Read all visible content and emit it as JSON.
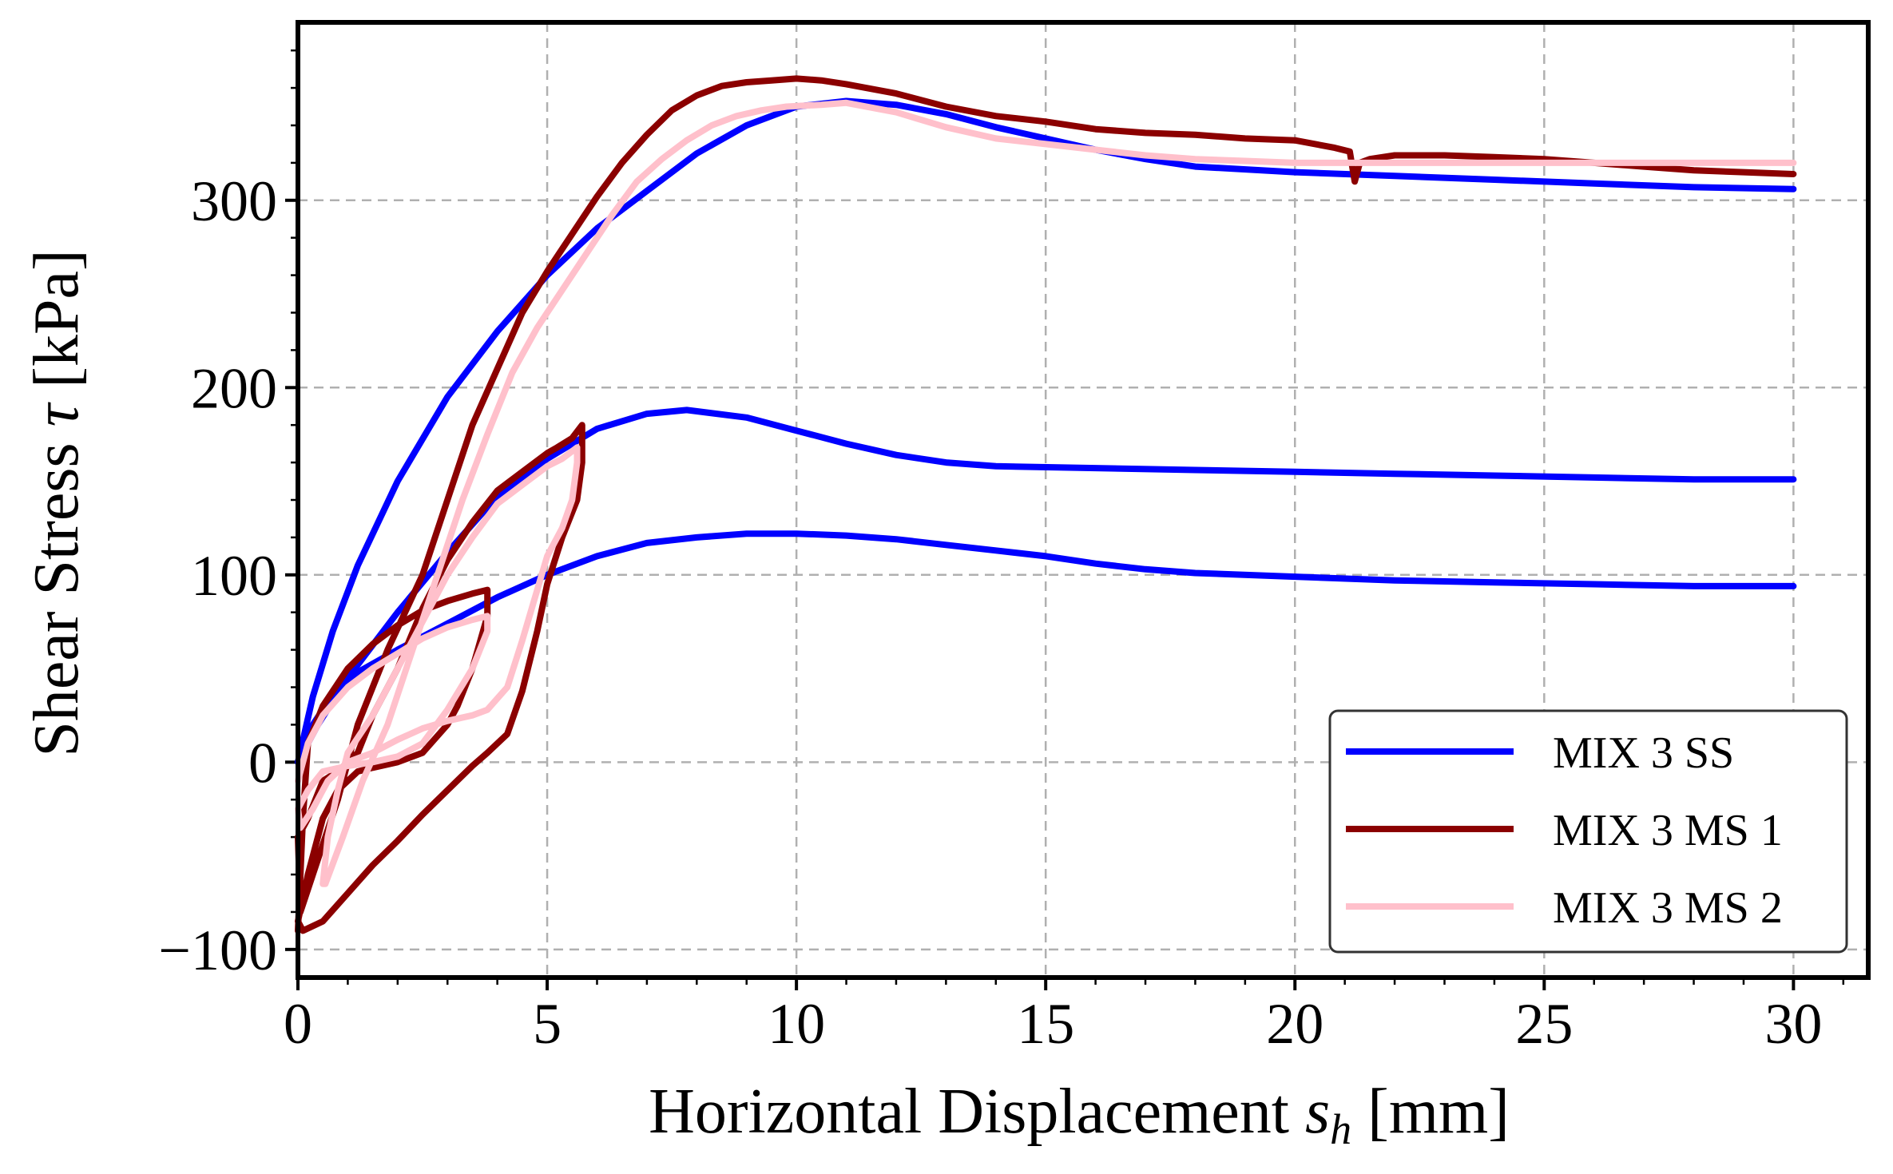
{
  "chart_data": {
    "type": "line",
    "xlabel": "Horizontal Displacement s_h [mm]",
    "xlabel_main": "Horizontal Displacement ",
    "xlabel_sym": "s",
    "xlabel_sub": "h",
    "xlabel_unit": " [mm]",
    "ylabel": "Shear Stress τ [kPa]",
    "ylabel_main": "Shear Stress ",
    "ylabel_sym": "τ",
    "ylabel_unit": " [kPa]",
    "xlim": [
      0,
      31.5
    ],
    "ylim": [
      -115,
      395
    ],
    "xticks": [
      0,
      5,
      10,
      15,
      20,
      25,
      30
    ],
    "yticks": [
      -100,
      0,
      100,
      200,
      300
    ],
    "xtick_labels": [
      "0",
      "5",
      "10",
      "15",
      "20",
      "25",
      "30"
    ],
    "ytick_labels": [
      "−100",
      "0",
      "100",
      "200",
      "300"
    ],
    "grid": true,
    "legend_position": "bottom-right",
    "series": [
      {
        "name": "MIX 3 SS",
        "color": "#0000ff",
        "segments": [
          [
            [
              0.0,
              0
            ],
            [
              0.3,
              20
            ],
            [
              0.7,
              36
            ],
            [
              1.2,
              48
            ],
            [
              2,
              60
            ],
            [
              3,
              74
            ],
            [
              4,
              88
            ],
            [
              5,
              100
            ],
            [
              6,
              110
            ],
            [
              7,
              117
            ],
            [
              8,
              120
            ],
            [
              9,
              122
            ],
            [
              10,
              122
            ],
            [
              11,
              121
            ],
            [
              12,
              119
            ],
            [
              13,
              116
            ],
            [
              14,
              113
            ],
            [
              15,
              110
            ],
            [
              16,
              106
            ],
            [
              17,
              103
            ],
            [
              18,
              101
            ],
            [
              20,
              99
            ],
            [
              22,
              97
            ],
            [
              24,
              96
            ],
            [
              26,
              95
            ],
            [
              28,
              94
            ],
            [
              30,
              94
            ]
          ],
          [
            [
              0.0,
              0
            ],
            [
              0.4,
              20
            ],
            [
              1.0,
              45
            ],
            [
              2,
              80
            ],
            [
              3,
              112
            ],
            [
              4,
              142
            ],
            [
              5,
              162
            ],
            [
              6,
              178
            ],
            [
              7,
              186
            ],
            [
              7.8,
              188
            ],
            [
              9,
              184
            ],
            [
              10,
              177
            ],
            [
              11,
              170
            ],
            [
              12,
              164
            ],
            [
              13,
              160
            ],
            [
              14,
              158
            ],
            [
              16,
              157
            ],
            [
              18,
              156
            ],
            [
              20,
              155
            ],
            [
              22,
              154
            ],
            [
              24,
              153
            ],
            [
              26,
              152
            ],
            [
              28,
              151
            ],
            [
              30,
              151
            ]
          ],
          [
            [
              0.0,
              0
            ],
            [
              0.3,
              35
            ],
            [
              0.7,
              70
            ],
            [
              1.2,
              105
            ],
            [
              2,
              150
            ],
            [
              3,
              195
            ],
            [
              4,
              230
            ],
            [
              5,
              260
            ],
            [
              6,
              285
            ],
            [
              7,
              305
            ],
            [
              8,
              325
            ],
            [
              9,
              340
            ],
            [
              10,
              350
            ],
            [
              11,
              353
            ],
            [
              12,
              351
            ],
            [
              13,
              346
            ],
            [
              14,
              339
            ],
            [
              15,
              333
            ],
            [
              16,
              327
            ],
            [
              17,
              322
            ],
            [
              18,
              318
            ],
            [
              20,
              315
            ],
            [
              22,
              313
            ],
            [
              24,
              311
            ],
            [
              26,
              309
            ],
            [
              28,
              307
            ],
            [
              30,
              306
            ]
          ]
        ]
      },
      {
        "name": "MIX 3 MS 1",
        "color": "#8b0000",
        "segments": [
          [
            [
              0.0,
              -90
            ],
            [
              0.1,
              -30
            ],
            [
              0.2,
              10
            ],
            [
              0.5,
              30
            ],
            [
              1,
              50
            ],
            [
              1.5,
              63
            ],
            [
              2,
              73
            ],
            [
              2.5,
              81
            ],
            [
              3,
              86
            ],
            [
              3.5,
              90
            ],
            [
              3.8,
              92
            ],
            [
              3.8,
              78
            ],
            [
              3.5,
              50
            ],
            [
              3.2,
              30
            ],
            [
              3,
              20
            ],
            [
              2.5,
              5
            ],
            [
              2,
              0
            ],
            [
              1.5,
              -3
            ],
            [
              1.2,
              -5
            ],
            [
              0.8,
              -15
            ],
            [
              0.5,
              -30
            ],
            [
              0.2,
              -60
            ],
            [
              0.0,
              -85
            ],
            [
              0.1,
              -90
            ],
            [
              0.5,
              -85
            ],
            [
              1,
              -70
            ],
            [
              1.5,
              -55
            ],
            [
              2,
              -42
            ],
            [
              2.5,
              -28
            ],
            [
              3,
              -15
            ],
            [
              3.5,
              -2
            ],
            [
              3.8,
              5
            ],
            [
              4.2,
              15
            ],
            [
              4.5,
              38
            ],
            [
              4.8,
              70
            ],
            [
              5,
              95
            ],
            [
              5.3,
              120
            ],
            [
              5.6,
              140
            ],
            [
              5.7,
              160
            ],
            [
              5.7,
              180
            ],
            [
              5.5,
              173
            ],
            [
              5.2,
              168
            ],
            [
              5,
              165
            ],
            [
              4.5,
              155
            ],
            [
              4,
              145
            ],
            [
              3.5,
              128
            ],
            [
              3,
              108
            ],
            [
              2.5,
              82
            ],
            [
              2,
              50
            ],
            [
              1.5,
              25
            ],
            [
              1.2,
              5
            ],
            [
              1,
              0
            ],
            [
              0.8,
              -5
            ],
            [
              0.5,
              -10
            ],
            [
              0.2,
              -30
            ],
            [
              0.0,
              -40
            ],
            [
              0.05,
              -80
            ],
            [
              0.3,
              -60
            ],
            [
              0.8,
              -20
            ],
            [
              1.2,
              20
            ],
            [
              1.8,
              60
            ],
            [
              2.5,
              100
            ],
            [
              3,
              140
            ],
            [
              3.5,
              180
            ],
            [
              4,
              210
            ],
            [
              4.5,
              240
            ],
            [
              5,
              262
            ],
            [
              5.5,
              282
            ],
            [
              6,
              302
            ],
            [
              6.5,
              320
            ],
            [
              7,
              335
            ],
            [
              7.5,
              348
            ],
            [
              8,
              356
            ],
            [
              8.5,
              361
            ],
            [
              9,
              363
            ],
            [
              9.5,
              364
            ],
            [
              10,
              365
            ],
            [
              10.5,
              364
            ],
            [
              11,
              362
            ],
            [
              12,
              357
            ],
            [
              13,
              350
            ],
            [
              14,
              345
            ],
            [
              15,
              342
            ],
            [
              16,
              338
            ],
            [
              17,
              336
            ],
            [
              18,
              335
            ],
            [
              19,
              333
            ],
            [
              20,
              332
            ],
            [
              20.8,
              328
            ],
            [
              21.1,
              326
            ],
            [
              21.2,
              310
            ],
            [
              21.3,
              320
            ],
            [
              21.5,
              322
            ],
            [
              22,
              324
            ],
            [
              23,
              324
            ],
            [
              24,
              323
            ],
            [
              25,
              322
            ],
            [
              26,
              320
            ],
            [
              27,
              318
            ],
            [
              28,
              316
            ],
            [
              29,
              315
            ],
            [
              30,
              314
            ]
          ]
        ]
      },
      {
        "name": "MIX 3 MS 2",
        "color": "#ffc0cb",
        "segments": [
          [
            [
              0.0,
              -10
            ],
            [
              0.2,
              10
            ],
            [
              0.5,
              25
            ],
            [
              1,
              40
            ],
            [
              1.5,
              50
            ],
            [
              2,
              58
            ],
            [
              2.5,
              66
            ],
            [
              3,
              72
            ],
            [
              3.5,
              76
            ],
            [
              3.8,
              78
            ],
            [
              3.8,
              70
            ],
            [
              3.5,
              50
            ],
            [
              3,
              28
            ],
            [
              2.5,
              10
            ],
            [
              2,
              3
            ],
            [
              1.5,
              0
            ],
            [
              1,
              -2
            ],
            [
              0.5,
              -5
            ],
            [
              0.2,
              -15
            ],
            [
              0.0,
              -25
            ],
            [
              0.05,
              -35
            ],
            [
              0.3,
              -25
            ],
            [
              0.6,
              -10
            ],
            [
              1,
              0
            ],
            [
              1.5,
              5
            ],
            [
              2,
              12
            ],
            [
              2.5,
              18
            ],
            [
              3,
              22
            ],
            [
              3.5,
              25
            ],
            [
              3.8,
              28
            ],
            [
              4.2,
              40
            ],
            [
              4.5,
              65
            ],
            [
              4.8,
              92
            ],
            [
              5,
              110
            ],
            [
              5.3,
              125
            ],
            [
              5.5,
              140
            ],
            [
              5.6,
              160
            ],
            [
              5.6,
              168
            ],
            [
              5.3,
              162
            ],
            [
              5,
              158
            ],
            [
              4.5,
              148
            ],
            [
              4,
              138
            ],
            [
              3.5,
              120
            ],
            [
              3,
              100
            ],
            [
              2.5,
              75
            ],
            [
              2,
              50
            ],
            [
              1.5,
              25
            ],
            [
              1,
              5
            ],
            [
              0.8,
              -15
            ],
            [
              0.6,
              -40
            ],
            [
              0.5,
              -65
            ],
            [
              0.55,
              -65
            ],
            [
              0.9,
              -40
            ],
            [
              1.3,
              -10
            ],
            [
              1.8,
              20
            ],
            [
              2.3,
              60
            ],
            [
              2.8,
              100
            ],
            [
              3.3,
              140
            ],
            [
              3.8,
              175
            ],
            [
              4.3,
              208
            ],
            [
              4.8,
              232
            ],
            [
              5.3,
              252
            ],
            [
              5.8,
              272
            ],
            [
              6.3,
              292
            ],
            [
              6.8,
              310
            ],
            [
              7.3,
              322
            ],
            [
              7.8,
              332
            ],
            [
              8.3,
              340
            ],
            [
              8.8,
              345
            ],
            [
              9.3,
              348
            ],
            [
              9.8,
              350
            ],
            [
              10.5,
              351
            ],
            [
              11,
              352
            ],
            [
              12,
              347
            ],
            [
              13,
              339
            ],
            [
              14,
              333
            ],
            [
              15,
              330
            ],
            [
              16,
              327
            ],
            [
              17,
              324
            ],
            [
              18,
              322
            ],
            [
              19,
              321
            ],
            [
              20,
              320
            ],
            [
              21,
              320
            ],
            [
              22,
              320
            ],
            [
              23,
              320
            ],
            [
              24,
              320
            ],
            [
              25,
              320
            ],
            [
              26,
              320
            ],
            [
              27,
              320
            ],
            [
              28,
              320
            ],
            [
              29,
              320
            ],
            [
              30,
              320
            ]
          ]
        ]
      }
    ]
  }
}
